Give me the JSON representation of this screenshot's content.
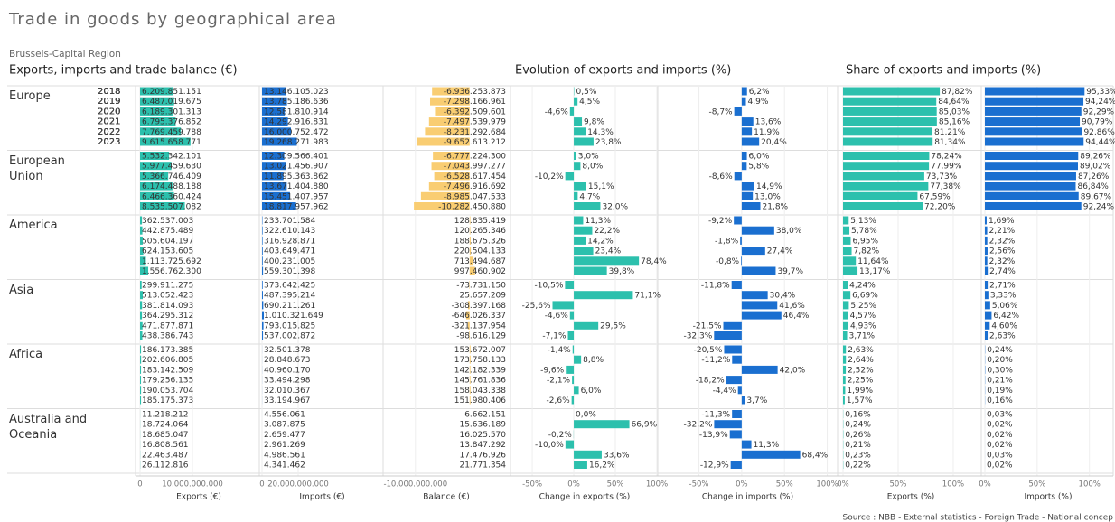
{
  "title": "Trade in goods by geographical area",
  "subtitle": "Brussels-Capital Region",
  "section_titles": [
    "Exports, imports and trade balance (€)",
    "Evolution of exports and imports (%)",
    "Share of exports and imports (%)"
  ],
  "source": "Source : NBB - External statistics - Foreign Trade - National concep",
  "regions": [
    "Europe",
    "European Union",
    "America",
    "Asia",
    "Africa",
    "Australia and Oceania"
  ],
  "years": [
    "2018",
    "2019",
    "2020",
    "2021",
    "2022",
    "2023"
  ],
  "chart_data": [
    {
      "type": "bar",
      "xlabel": "Exports (€)",
      "color": "#2cc0ad",
      "xlim": [
        0,
        22400000000
      ],
      "xticks": [
        0,
        {
          "value": 10000000000,
          "label": "10.000.000.000"
        }
      ],
      "values": [
        [
          6209851151,
          6487019675,
          6189301313,
          6795376852,
          7769459788,
          9615658771
        ],
        [
          5532342101,
          5977459630,
          5366746409,
          6174488188,
          6466360424,
          8535507082
        ],
        [
          362537003,
          442875489,
          505604197,
          624153605,
          1113725692,
          1556762300
        ],
        [
          299911275,
          513052423,
          381814093,
          364295312,
          471877871,
          438386743
        ],
        [
          186173385,
          202606805,
          183142509,
          179256135,
          190053704,
          185175373
        ],
        [
          11218212,
          18724064,
          18685047,
          16808561,
          22463487,
          26112816
        ]
      ],
      "value_labels": [
        [
          "6.209.851.151",
          "6.487.019.675",
          "6.189.301.313",
          "6.795.376.852",
          "7.769.459.788",
          "9.615.658.771"
        ],
        [
          "5.532.342.101",
          "5.977.459.630",
          "5.366.746.409",
          "6.174.488.188",
          "6.466.360.424",
          "8.535.507.082"
        ],
        [
          "362.537.003",
          "442.875.489",
          "505.604.197",
          "624.153.605",
          "1.113.725.692",
          "1.556.762.300"
        ],
        [
          "299.911.275",
          "513.052.423",
          "381.814.093",
          "364.295.312",
          "471.877.871",
          "438.386.743"
        ],
        [
          "186.173.385",
          "202.606.805",
          "183.142.509",
          "179.256.135",
          "190.053.704",
          "185.175.373"
        ],
        [
          "11.218.212",
          "18.724.064",
          "18.685.047",
          "16.808.561",
          "22.463.487",
          "26.112.816"
        ]
      ]
    },
    {
      "type": "bar",
      "xlabel": "Imports (€)",
      "color": "#1a6fd0",
      "xlim": [
        0,
        66500000000
      ],
      "xticks": [
        0,
        {
          "value": 20000000000,
          "label": "20.000.000.000"
        }
      ],
      "values": [
        [
          13146105023,
          13785186636,
          12581810914,
          14292916831,
          16000752472,
          19268271983
        ],
        [
          12309566401,
          13021456907,
          11895363862,
          13671404880,
          15451407957,
          18817957962
        ],
        [
          233701584,
          322610143,
          316928871,
          403649471,
          400231005,
          559301398
        ],
        [
          373642425,
          487395214,
          690211261,
          1010321649,
          793015825,
          537002872
        ],
        [
          32501378,
          28848673,
          40960170,
          33494298,
          32010367,
          33194967
        ],
        [
          4556061,
          3087875,
          2659477,
          2961269,
          4986561,
          4341462
        ]
      ],
      "value_labels": [
        [
          "13.146.105.023",
          "13.785.186.636",
          "12.581.810.914",
          "14.292.916.831",
          "16.000.752.472",
          "19.268.271.983"
        ],
        [
          "12.309.566.401",
          "13.021.456.907",
          "11.895.363.862",
          "13.671.404.880",
          "15.451.407.957",
          "18.817.957.962"
        ],
        [
          "233.701.584",
          "322.610.143",
          "316.928.871",
          "403.649.471",
          "400.231.005",
          "559.301.398"
        ],
        [
          "373.642.425",
          "487.395.214",
          "690.211.261",
          "1.010.321.649",
          "793.015.825",
          "537.002.872"
        ],
        [
          "32.501.378",
          "28.848.673",
          "40.960.170",
          "33.494.298",
          "32.010.367",
          "33.194.967"
        ],
        [
          "4.556.061",
          "3.087.875",
          "2.659.477",
          "2.961.269",
          "4.986.561",
          "4.341.462"
        ]
      ]
    },
    {
      "type": "bar",
      "xlabel": "Balance (€)",
      "color": "#f9cd72",
      "xlim": [
        -15800000000,
        7200000000
      ],
      "xticks": [
        {
          "value": -10000000000,
          "label": "-10.000.000.000"
        }
      ],
      "values": [
        [
          -6936253873,
          -7298166961,
          -6392509601,
          -7497539979,
          -8231292684,
          -9652613212
        ],
        [
          -6777224300,
          -7043997277,
          -6528617454,
          -7496916692,
          -8985047533,
          -10282450880
        ],
        [
          128835419,
          120265346,
          188675326,
          220504133,
          713494687,
          997460902
        ],
        [
          -73731150,
          25657209,
          -308397168,
          -646026337,
          -321137954,
          -98616129
        ],
        [
          153672007,
          173758133,
          142182339,
          145761836,
          158043338,
          151980406
        ],
        [
          6662151,
          15636189,
          16025570,
          13847292,
          17476926,
          21771354
        ]
      ],
      "value_labels": [
        [
          "-6.936.253.873",
          "-7.298.166.961",
          "-6.392.509.601",
          "-7.497.539.979",
          "-8.231.292.684",
          "-9.652.613.212"
        ],
        [
          "-6.777.224.300",
          "-7.043.997.277",
          "-6.528.617.454",
          "-7.496.916.692",
          "-8.985.047.533",
          "-10.282.450.880"
        ],
        [
          "128.835.419",
          "120.265.346",
          "188.675.326",
          "220.504.133",
          "713.494.687",
          "997.460.902"
        ],
        [
          "-73.731.150",
          "25.657.209",
          "-308.397.168",
          "-646.026.337",
          "-321.137.954",
          "-98.616.129"
        ],
        [
          "153.672.007",
          "173.758.133",
          "142.182.339",
          "145.761.836",
          "158.043.338",
          "151.980.406"
        ],
        [
          "6.662.151",
          "15.636.189",
          "16.025.570",
          "13.847.292",
          "17.476.926",
          "21.771.354"
        ]
      ]
    },
    {
      "type": "bar",
      "xlabel": "Change in exports (%)",
      "color": "#2cc0ad",
      "xlim": [
        -74,
        100
      ],
      "xticks": [
        {
          "value": -50,
          "label": "-50%"
        },
        {
          "value": 0,
          "label": "0%"
        },
        {
          "value": 50,
          "label": "50%"
        },
        {
          "value": 100,
          "label": "100%"
        }
      ],
      "values": [
        [
          0.5,
          4.5,
          -4.6,
          9.8,
          14.3,
          23.8
        ],
        [
          3.0,
          8.0,
          -10.2,
          15.1,
          4.7,
          32.0
        ],
        [
          11.3,
          22.2,
          14.2,
          23.4,
          78.4,
          39.8
        ],
        [
          -10.5,
          71.1,
          -25.6,
          -4.6,
          29.5,
          -7.1
        ],
        [
          -1.4,
          8.8,
          -9.6,
          -2.1,
          6.0,
          -2.6
        ],
        [
          0,
          66.9,
          -0.2,
          -10.0,
          33.6,
          16.2
        ]
      ],
      "value_labels": [
        [
          "0,5%",
          "4,5%",
          "-4,6%",
          "9,8%",
          "14,3%",
          "23,8%"
        ],
        [
          "3,0%",
          "8,0%",
          "-10,2%",
          "15,1%",
          "4,7%",
          "32,0%"
        ],
        [
          "11,3%",
          "22,2%",
          "14,2%",
          "23,4%",
          "78,4%",
          "39,8%"
        ],
        [
          "-10,5%",
          "71,1%",
          "-25,6%",
          "-4,6%",
          "29,5%",
          "-7,1%"
        ],
        [
          "-1,4%",
          "8,8%",
          "-9,6%",
          "-2,1%",
          "6,0%",
          "-2,6%"
        ],
        [
          "0,0%",
          "66,9%",
          "-0,2%",
          "-10,0%",
          "33,6%",
          "16,2%"
        ]
      ]
    },
    {
      "type": "bar",
      "xlabel": "Change in imports (%)",
      "color": "#1a6fd0",
      "xlim": [
        -96,
        110
      ],
      "xticks": [
        {
          "value": -50,
          "label": "-50%"
        },
        {
          "value": 0,
          "label": "0%"
        },
        {
          "value": 50,
          "label": "50%"
        },
        {
          "value": 100,
          "label": "100%"
        }
      ],
      "values": [
        [
          6.2,
          4.9,
          -8.7,
          13.6,
          11.9,
          20.4
        ],
        [
          6.0,
          5.8,
          -8.6,
          14.9,
          13.0,
          21.8
        ],
        [
          -9.2,
          38.0,
          -1.8,
          27.4,
          -0.8,
          39.7
        ],
        [
          -11.8,
          30.4,
          41.6,
          46.4,
          -21.5,
          -32.3
        ],
        [
          -20.5,
          -11.2,
          42.0,
          -18.2,
          -4.4,
          3.7
        ],
        [
          -11.3,
          -32.2,
          -13.9,
          11.3,
          68.4,
          -12.9
        ]
      ],
      "value_labels": [
        [
          "6,2%",
          "4,9%",
          "-8,7%",
          "13,6%",
          "11,9%",
          "20,4%"
        ],
        [
          "6,0%",
          "5,8%",
          "-8,6%",
          "14,9%",
          "13,0%",
          "21,8%"
        ],
        [
          "-9,2%",
          "38,0%",
          "-1,8%",
          "27,4%",
          "-0,8%",
          "39,7%"
        ],
        [
          "-11,8%",
          "30,4%",
          "41,6%",
          "46,4%",
          "-21,5%",
          "-32,3%"
        ],
        [
          "-20,5%",
          "-11,2%",
          "42,0%",
          "-18,2%",
          "-4,4%",
          "3,7%"
        ],
        [
          "-11,3%",
          "-32,2%",
          "-13,9%",
          "11,3%",
          "68,4%",
          "-12,9%"
        ]
      ]
    },
    {
      "type": "bar",
      "xlabel": "Exports (%)",
      "color": "#2cc0ad",
      "xlim": [
        0,
        123
      ],
      "xticks": [
        {
          "value": 0,
          "label": "0%"
        },
        {
          "value": 50,
          "label": "50%"
        },
        {
          "value": 100,
          "label": "100%"
        }
      ],
      "values": [
        [
          87.82,
          84.64,
          85.03,
          85.16,
          81.21,
          81.34
        ],
        [
          78.24,
          77.99,
          73.73,
          77.38,
          67.59,
          72.2
        ],
        [
          5.13,
          5.78,
          6.95,
          7.82,
          11.64,
          13.17
        ],
        [
          4.24,
          6.69,
          5.25,
          4.57,
          4.93,
          3.71
        ],
        [
          2.63,
          2.64,
          2.52,
          2.25,
          1.99,
          1.57
        ],
        [
          0.16,
          0.24,
          0.26,
          0.21,
          0.23,
          0.22
        ]
      ],
      "value_labels": [
        [
          "87,82%",
          "84,64%",
          "85,03%",
          "85,16%",
          "81,21%",
          "81,34%"
        ],
        [
          "78,24%",
          "77,99%",
          "73,73%",
          "77,38%",
          "67,59%",
          "72,20%"
        ],
        [
          "5,13%",
          "5,78%",
          "6,95%",
          "7,82%",
          "11,64%",
          "13,17%"
        ],
        [
          "4,24%",
          "6,69%",
          "5,25%",
          "4,57%",
          "4,93%",
          "3,71%"
        ],
        [
          "2,63%",
          "2,64%",
          "2,52%",
          "2,25%",
          "1,99%",
          "1,57%"
        ],
        [
          "0,16%",
          "0,24%",
          "0,26%",
          "0,21%",
          "0,23%",
          "0,22%"
        ]
      ]
    },
    {
      "type": "bar",
      "xlabel": "Imports (%)",
      "color": "#1a6fd0",
      "xlim": [
        0,
        121
      ],
      "xticks": [
        {
          "value": 0,
          "label": "0%"
        },
        {
          "value": 50,
          "label": "50%"
        },
        {
          "value": 100,
          "label": "100%"
        }
      ],
      "values": [
        [
          95.33,
          94.24,
          92.29,
          90.79,
          92.86,
          94.44
        ],
        [
          89.26,
          89.02,
          87.26,
          86.84,
          89.67,
          92.24
        ],
        [
          1.69,
          2.21,
          2.32,
          2.56,
          2.32,
          2.74
        ],
        [
          2.71,
          3.33,
          5.06,
          6.42,
          4.6,
          2.63
        ],
        [
          0.24,
          0.2,
          0.3,
          0.21,
          0.19,
          0.16
        ],
        [
          0.03,
          0.02,
          0.02,
          0.02,
          0.03,
          0.02
        ]
      ],
      "value_labels": [
        [
          "95,33%",
          "94,24%",
          "92,29%",
          "90,79%",
          "92,86%",
          "94,44%"
        ],
        [
          "89,26%",
          "89,02%",
          "87,26%",
          "86,84%",
          "89,67%",
          "92,24%"
        ],
        [
          "1,69%",
          "2,21%",
          "2,32%",
          "2,56%",
          "2,32%",
          "2,74%"
        ],
        [
          "2,71%",
          "3,33%",
          "5,06%",
          "6,42%",
          "4,60%",
          "2,63%"
        ],
        [
          "0,24%",
          "0,20%",
          "0,30%",
          "0,21%",
          "0,19%",
          "0,16%"
        ],
        [
          "0,03%",
          "0,02%",
          "0,02%",
          "0,02%",
          "0,03%",
          "0,02%"
        ]
      ]
    }
  ]
}
